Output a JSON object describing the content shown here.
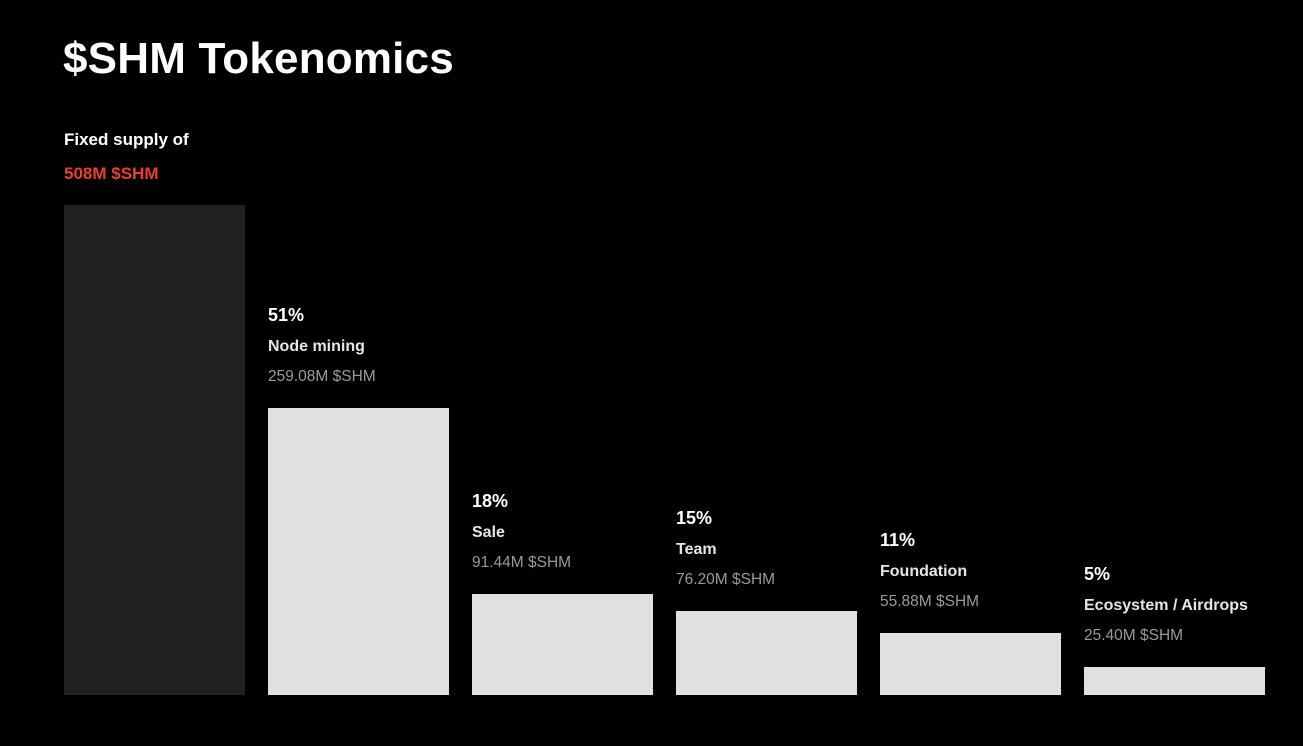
{
  "page": {
    "title": "$SHM Tokenomics"
  },
  "supply": {
    "label": "Fixed supply of",
    "amount": "508M $SHM"
  },
  "chart_data": {
    "type": "bar",
    "title": "$SHM Tokenomics",
    "subtitle": "Fixed supply of 508M $SHM",
    "unit": "M $SHM",
    "total_supply": {
      "label": "Fixed supply of",
      "amount_label": "508M $SHM",
      "amount_millions": 508,
      "percent": 100
    },
    "categories": [
      "Node mining",
      "Sale",
      "Team",
      "Foundation",
      "Ecosystem / Airdrops"
    ],
    "values_percent": [
      51,
      18,
      15,
      11,
      5
    ],
    "values_millions": [
      259.08,
      91.44,
      76.2,
      55.88,
      25.4
    ],
    "segments": [
      {
        "percent": 51,
        "percent_label": "51%",
        "name": "Node mining",
        "amount_millions": 259.08,
        "amount_label": "259.08M $SHM"
      },
      {
        "percent": 18,
        "percent_label": "18%",
        "name": "Sale",
        "amount_millions": 91.44,
        "amount_label": "91.44M $SHM"
      },
      {
        "percent": 15,
        "percent_label": "15%",
        "name": "Team",
        "amount_millions": 76.2,
        "amount_label": "76.20M $SHM"
      },
      {
        "percent": 11,
        "percent_label": "11%",
        "name": "Foundation",
        "amount_millions": 55.88,
        "amount_label": "55.88M $SHM"
      },
      {
        "percent": 5,
        "percent_label": "5%",
        "name": "Ecosystem / Airdrops",
        "amount_millions": 25.4,
        "amount_label": "25.40M $SHM"
      }
    ],
    "colors": {
      "background": "#000000",
      "total_bar": "#212121",
      "segment_bar": "#e0e0e0",
      "accent": "#e8402a",
      "pct_color": "#ffffff",
      "name_color": "#e6e6e6",
      "amount_color": "#9a9a9a"
    },
    "layout_hints": {
      "bars_aligned": "bottom",
      "labels_position": "above-each-bar",
      "legend": "none",
      "axes": "none",
      "grid": false
    }
  }
}
